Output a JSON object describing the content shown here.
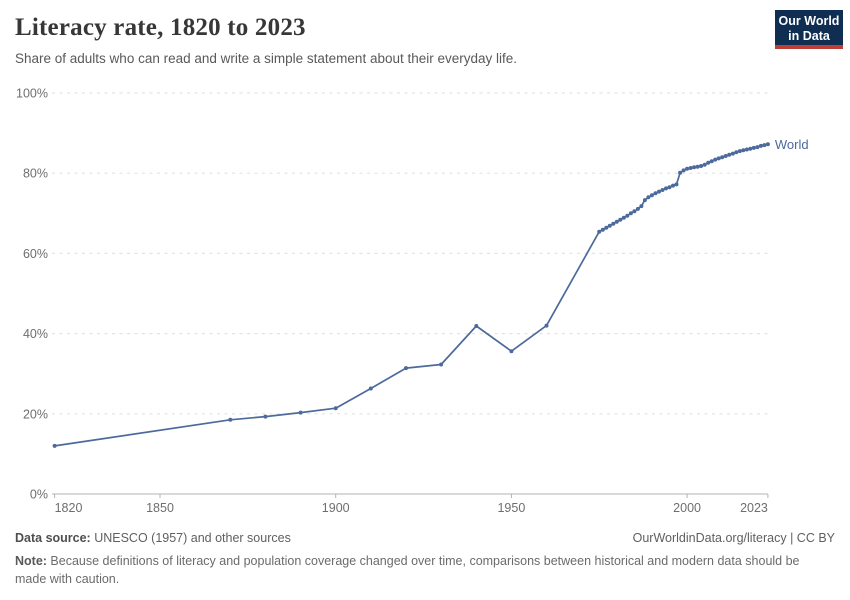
{
  "header": {
    "title": "Literacy rate, 1820 to 2023",
    "subtitle": "Share of adults who can read and write a simple statement about their everyday life.",
    "logo": {
      "line1": "Our World",
      "line2": "in Data",
      "bg_color": "#0f2e51",
      "accent_color": "#bc3e37"
    }
  },
  "chart_data": {
    "type": "line",
    "title": "Literacy rate, 1820 to 2023",
    "xlabel": "",
    "ylabel": "",
    "xlim": [
      1820,
      2023
    ],
    "ylim": [
      0,
      100
    ],
    "x_ticks": [
      1820,
      1850,
      1900,
      1950,
      2000,
      2023
    ],
    "y_ticks": [
      0,
      20,
      40,
      60,
      80,
      100
    ],
    "y_tick_suffix": "%",
    "grid": "horizontal-dashed",
    "legend_position": "end-of-line-label",
    "colors": {
      "line": "#4c6a9c",
      "grid": "#e3e3e3",
      "axis": "#b3b3b3",
      "tick_text": "#6e6e6e"
    },
    "series": [
      {
        "name": "World",
        "color": "#4c6a9c",
        "points": [
          [
            1820,
            12
          ],
          [
            1870,
            18.5
          ],
          [
            1880,
            19.3
          ],
          [
            1890,
            20.3
          ],
          [
            1900,
            21.4
          ],
          [
            1910,
            26.3
          ],
          [
            1920,
            31.4
          ],
          [
            1930,
            32.3
          ],
          [
            1940,
            41.9
          ],
          [
            1950,
            35.6
          ],
          [
            1960,
            42
          ],
          [
            1975,
            65.4
          ],
          [
            1976,
            65.9
          ],
          [
            1977,
            66.4
          ],
          [
            1978,
            66.9
          ],
          [
            1979,
            67.4
          ],
          [
            1980,
            67.9
          ],
          [
            1981,
            68.4
          ],
          [
            1982,
            68.9
          ],
          [
            1983,
            69.4
          ],
          [
            1984,
            70
          ],
          [
            1985,
            70.5
          ],
          [
            1986,
            71.1
          ],
          [
            1987,
            71.8
          ],
          [
            1988,
            73.3
          ],
          [
            1989,
            74
          ],
          [
            1990,
            74.5
          ],
          [
            1991,
            75
          ],
          [
            1992,
            75.4
          ],
          [
            1993,
            75.8
          ],
          [
            1994,
            76.2
          ],
          [
            1995,
            76.5
          ],
          [
            1996,
            76.9
          ],
          [
            1997,
            77.2
          ],
          [
            1998,
            80.1
          ],
          [
            1999,
            80.7
          ],
          [
            2000,
            81.1
          ],
          [
            2001,
            81.3
          ],
          [
            2002,
            81.5
          ],
          [
            2003,
            81.6
          ],
          [
            2004,
            81.8
          ],
          [
            2005,
            82.1
          ],
          [
            2006,
            82.6
          ],
          [
            2007,
            83
          ],
          [
            2008,
            83.4
          ],
          [
            2009,
            83.7
          ],
          [
            2010,
            84
          ],
          [
            2011,
            84.3
          ],
          [
            2012,
            84.6
          ],
          [
            2013,
            84.9
          ],
          [
            2014,
            85.2
          ],
          [
            2015,
            85.5
          ],
          [
            2016,
            85.7
          ],
          [
            2017,
            85.9
          ],
          [
            2018,
            86.1
          ],
          [
            2019,
            86.3
          ],
          [
            2020,
            86.5
          ],
          [
            2021,
            86.8
          ],
          [
            2022,
            87
          ],
          [
            2023,
            87.2
          ]
        ]
      }
    ]
  },
  "footer": {
    "source_label": "Data source:",
    "source_text": " UNESCO (1957) and other sources",
    "credit": "OurWorldinData.org/literacy | CC BY",
    "note_label": "Note:",
    "note_text": " Because definitions of literacy and population coverage changed over time, comparisons between historical and modern data should be made with caution."
  }
}
